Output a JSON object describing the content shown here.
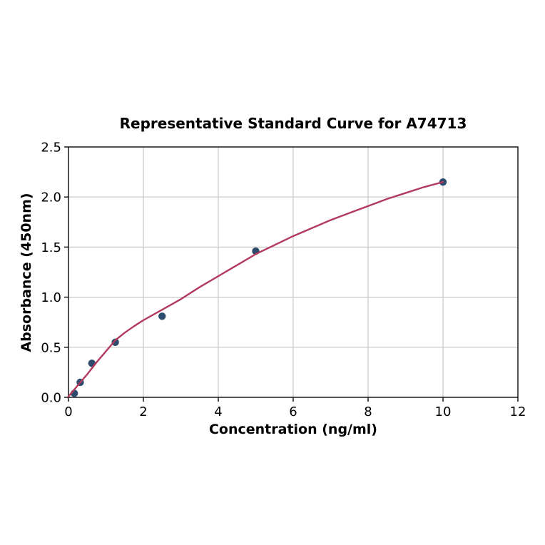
{
  "figure": {
    "background": "#ffffff"
  },
  "chart_data": {
    "type": "scatter",
    "title": "Representative Standard Curve for A74713",
    "xlabel": "Concentration (ng/ml)",
    "ylabel": "Absorbance (450nm)",
    "xlim": [
      0,
      12
    ],
    "ylim": [
      0,
      2.5
    ],
    "grid": true,
    "legend": "none",
    "x_ticks": {
      "values": [
        0,
        2,
        4,
        6,
        8,
        10,
        12
      ],
      "labels": [
        "0",
        "2",
        "4",
        "6",
        "8",
        "10",
        "12"
      ]
    },
    "y_ticks": {
      "values": [
        0,
        0.5,
        1.0,
        1.5,
        2.0,
        2.5
      ],
      "labels": [
        "0.0",
        "0.5",
        "1.0",
        "1.5",
        "2.0",
        "2.5"
      ]
    },
    "series": [
      {
        "name": "standard-points",
        "type": "scatter",
        "color": "#2d4b6d",
        "marker": "circle",
        "x": [
          0.156,
          0.313,
          0.625,
          1.25,
          2.5,
          5,
          10
        ],
        "y": [
          0.04,
          0.15,
          0.34,
          0.55,
          0.81,
          1.46,
          2.15
        ]
      },
      {
        "name": "fitted-curve",
        "type": "line",
        "color": "#b23a5e",
        "points": [
          [
            0,
            0.01
          ],
          [
            0.25,
            0.12
          ],
          [
            0.5,
            0.23
          ],
          [
            0.75,
            0.35
          ],
          [
            1.0,
            0.46
          ],
          [
            1.25,
            0.57
          ],
          [
            1.5,
            0.645
          ],
          [
            1.75,
            0.71
          ],
          [
            2.0,
            0.77
          ],
          [
            2.5,
            0.875
          ],
          [
            3.0,
            0.98
          ],
          [
            3.5,
            1.1
          ],
          [
            4.0,
            1.21
          ],
          [
            4.5,
            1.32
          ],
          [
            5.0,
            1.43
          ],
          [
            5.5,
            1.52
          ],
          [
            6.0,
            1.61
          ],
          [
            6.5,
            1.69
          ],
          [
            7.0,
            1.77
          ],
          [
            7.5,
            1.84
          ],
          [
            8.0,
            1.91
          ],
          [
            8.5,
            1.98
          ],
          [
            9.0,
            2.04
          ],
          [
            9.5,
            2.1
          ],
          [
            10.0,
            2.15
          ]
        ]
      }
    ],
    "styles": {
      "grid_color": "#c8c8c8",
      "spine_color": "#262626",
      "tick_color": "#262626",
      "text_color": "#000000",
      "marker_radius": 5.2,
      "curve_width": 2.4,
      "tick_font_size": 18
    }
  }
}
